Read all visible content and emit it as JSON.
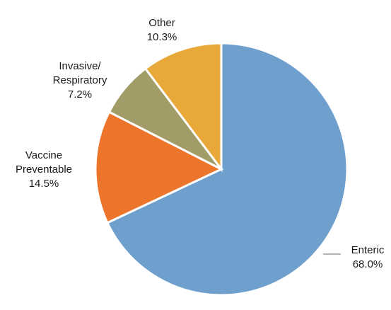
{
  "chart_data": {
    "type": "pie",
    "slices": [
      {
        "name": "Enteric",
        "label_lines": [
          "Enteric",
          "68.0%"
        ],
        "value": 68.0,
        "color": "#6e9fcd"
      },
      {
        "name": "Vaccine Preventable",
        "label_lines": [
          "Vaccine",
          "Preventable",
          "14.5%"
        ],
        "value": 14.5,
        "color": "#ec742b"
      },
      {
        "name": "Invasive/ Respiratory",
        "label_lines": [
          "Invasive/",
          "Respiratory",
          "7.2%"
        ],
        "value": 7.2,
        "color": "#a29d68"
      },
      {
        "name": "Other",
        "label_lines": [
          "Other",
          "10.3%"
        ],
        "value": 10.3,
        "color": "#e9a93a"
      }
    ]
  }
}
